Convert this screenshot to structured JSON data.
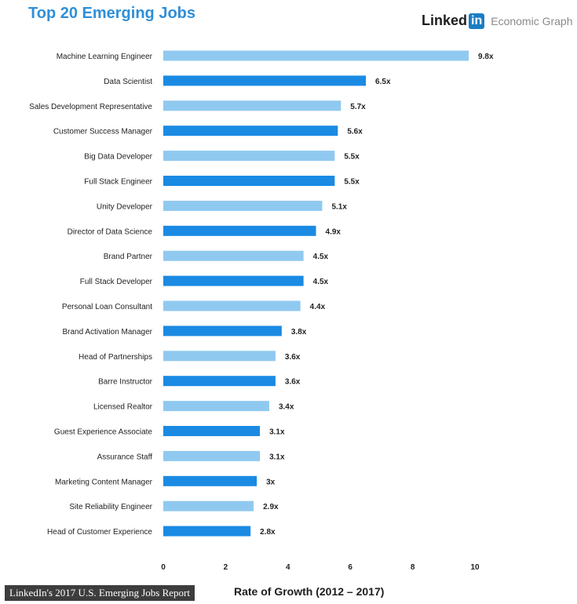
{
  "header": {
    "title": "Top 20 Emerging Jobs",
    "brand_word": "Linked",
    "brand_in": "in",
    "brand_sub": "Economic Graph"
  },
  "footer": {
    "source": "LinkedIn's 2017 U.S. Emerging Jobs Report"
  },
  "colors": {
    "light_bar": "#90c9f0",
    "dark_bar": "#1a8ae3",
    "title": "#2f8fd8"
  },
  "chart_data": {
    "type": "bar",
    "orientation": "horizontal",
    "title": "Top 20 Emerging Jobs",
    "xlabel": "Rate of Growth (2012 – 2017)",
    "xlim": [
      0,
      10
    ],
    "xticks": [
      0,
      2,
      4,
      6,
      8,
      10
    ],
    "grid": false,
    "categories": [
      "Machine Learning Engineer",
      "Data Scientist",
      "Sales Development Representative",
      "Customer Success Manager",
      "Big Data Developer",
      "Full Stack Engineer",
      "Unity Developer",
      "Director of Data Science",
      "Brand Partner",
      "Full Stack Developer",
      "Personal Loan Consultant",
      "Brand Activation Manager",
      "Head of Partnerships",
      "Barre Instructor",
      "Licensed Realtor",
      "Guest Experience Associate",
      "Assurance Staff",
      "Marketing Content Manager",
      "Site Reliability Engineer",
      "Head of Customer Experience"
    ],
    "values": [
      9.8,
      6.5,
      5.7,
      5.6,
      5.5,
      5.5,
      5.1,
      4.9,
      4.5,
      4.5,
      4.4,
      3.8,
      3.6,
      3.6,
      3.4,
      3.1,
      3.1,
      3,
      2.9,
      2.8
    ],
    "value_labels": [
      "9.8x",
      "6.5x",
      "5.7x",
      "5.6x",
      "5.5x",
      "5.5x",
      "5.1x",
      "4.9x",
      "4.5x",
      "4.5x",
      "4.4x",
      "3.8x",
      "3.6x",
      "3.6x",
      "3.4x",
      "3.1x",
      "3.1x",
      "3x",
      "2.9x",
      "2.8x"
    ]
  }
}
